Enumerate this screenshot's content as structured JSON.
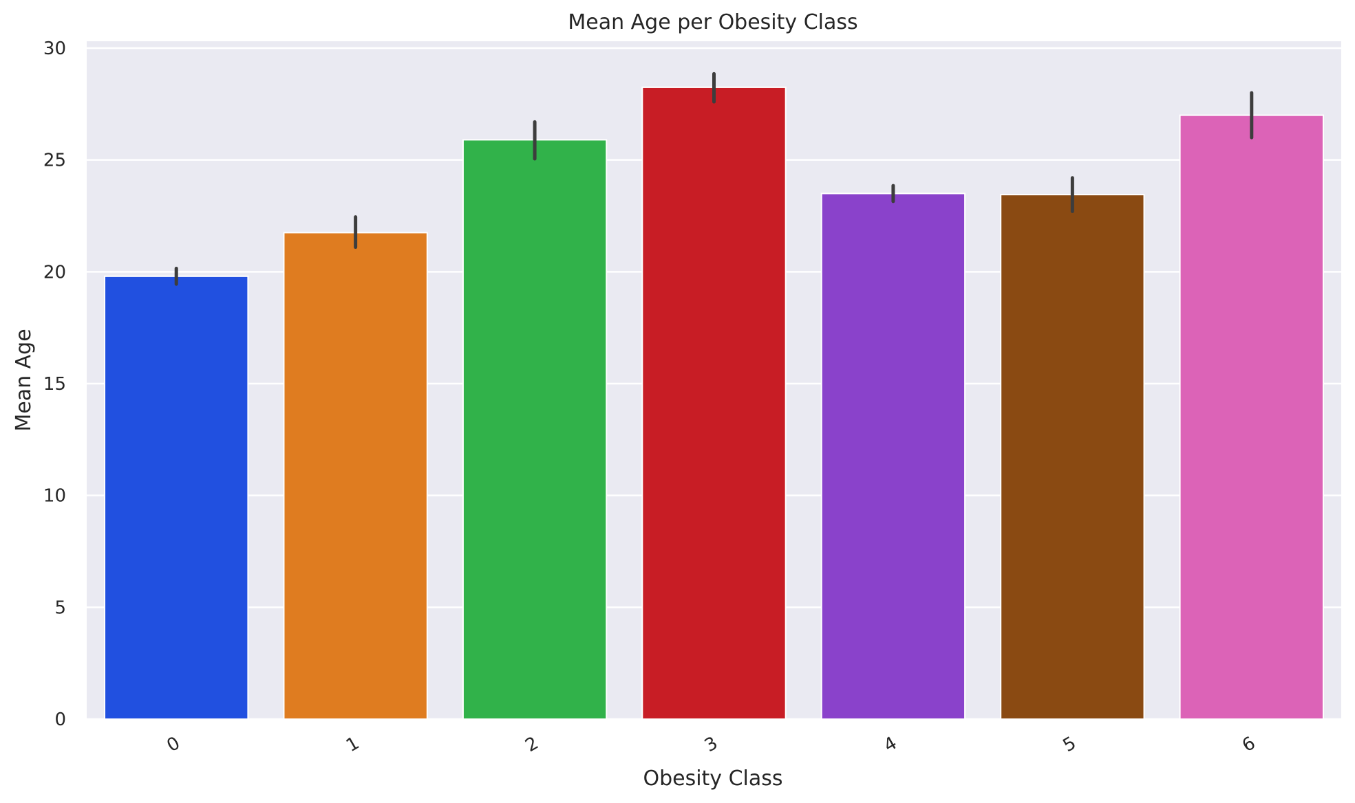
{
  "chart_data": {
    "type": "bar",
    "title": "Mean Age per Obesity Class",
    "xlabel": "Obesity Class",
    "ylabel": "Mean Age",
    "categories": [
      "0",
      "1",
      "2",
      "3",
      "4",
      "5",
      "6"
    ],
    "values": [
      19.8,
      21.75,
      25.9,
      28.25,
      23.5,
      23.45,
      27.0
    ],
    "error_low": [
      19.45,
      21.1,
      25.05,
      27.6,
      23.15,
      22.7,
      26.0
    ],
    "error_high": [
      20.15,
      22.45,
      26.7,
      28.85,
      23.85,
      24.2,
      28.0
    ],
    "colors": [
      "#2150e0",
      "#df7c20",
      "#31b24a",
      "#c81d25",
      "#8a42cb",
      "#8a4a12",
      "#dc63b7"
    ],
    "ylim": [
      0,
      30
    ],
    "yticks": [
      0,
      5,
      10,
      15,
      20,
      25,
      30
    ],
    "grid": true,
    "background": "#eaeaf2",
    "gridline_color": "#ffffff",
    "errorbar_color": "#3d3d3d",
    "x_tick_rotation": "rotated"
  }
}
